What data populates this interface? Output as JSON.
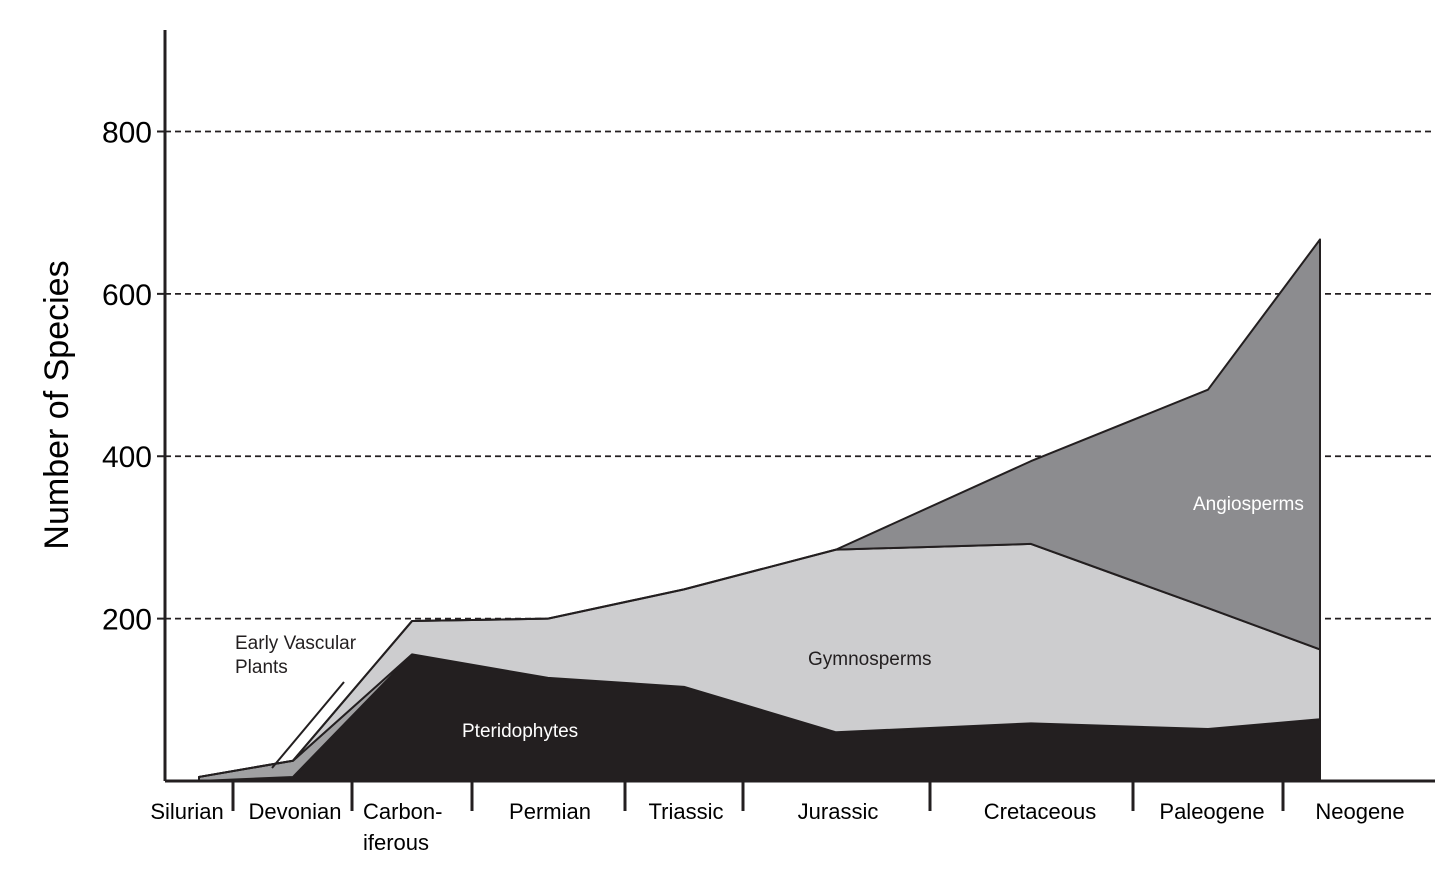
{
  "chart_data": {
    "type": "area",
    "y_label": "Number of Species",
    "categories": [
      "Silurian",
      "Devonian",
      "Carbon-\niferous",
      "Permian",
      "Triassic",
      "Jurassic",
      "Cretaceous",
      "Paleogene",
      "Neogene"
    ],
    "series": [
      {
        "name": "Pteridophytes",
        "color": "#231f20",
        "values": [
          0,
          5,
          156,
          127,
          116,
          60,
          71,
          64,
          76
        ]
      },
      {
        "name": "Early Vascular Plants",
        "color": "#a0a0a2",
        "values": [
          5,
          20,
          0,
          0,
          0,
          0,
          0,
          0,
          0
        ]
      },
      {
        "name": "Gymnosperms",
        "color": "#cdcdcf",
        "values": [
          0,
          0,
          41,
          73,
          120,
          225,
          221,
          149,
          86
        ]
      },
      {
        "name": "Angiosperms",
        "color": "#8c8c8f",
        "values": [
          0,
          0,
          0,
          0,
          0,
          0,
          102,
          269,
          505
        ]
      }
    ],
    "stacked": true,
    "ylim": [
      0,
      925
    ],
    "yticks": [
      200,
      400,
      600,
      800
    ],
    "grid": true
  }
}
